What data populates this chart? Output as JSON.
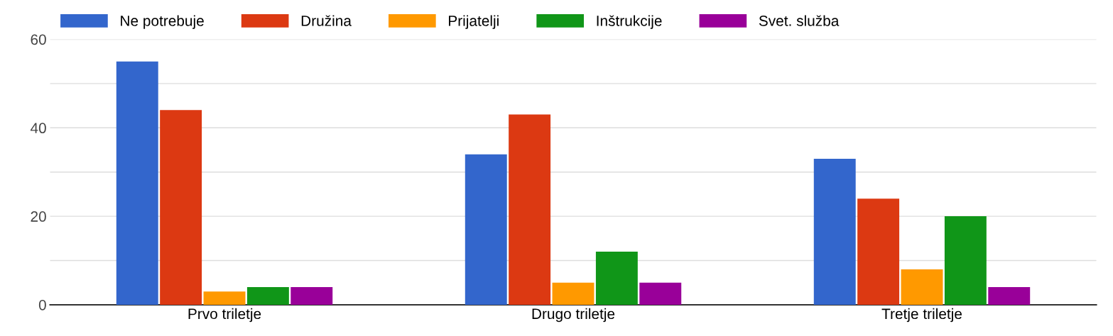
{
  "chart_data": {
    "type": "bar",
    "categories": [
      "Prvo triletje",
      "Drugo triletje",
      "Tretje triletje"
    ],
    "series": [
      {
        "name": "Ne potrebuje",
        "color": "#3366cc",
        "values": [
          55,
          34,
          33
        ]
      },
      {
        "name": "Družina",
        "color": "#dc3912",
        "values": [
          44,
          43,
          24
        ]
      },
      {
        "name": "Prijatelji",
        "color": "#ff9900",
        "values": [
          3,
          5,
          8
        ]
      },
      {
        "name": "Inštrukcije",
        "color": "#109618",
        "values": [
          4,
          12,
          20
        ]
      },
      {
        "name": "Svet. služba",
        "color": "#990099",
        "values": [
          4,
          5,
          4
        ]
      }
    ],
    "ylim": [
      0,
      60
    ],
    "yticks": [
      0,
      {
        "value": 10,
        "label": null
      },
      20,
      {
        "value": 30,
        "label": null
      },
      40,
      {
        "value": 50,
        "label": null
      },
      60
    ],
    "grid": "y",
    "legend": "top left"
  }
}
